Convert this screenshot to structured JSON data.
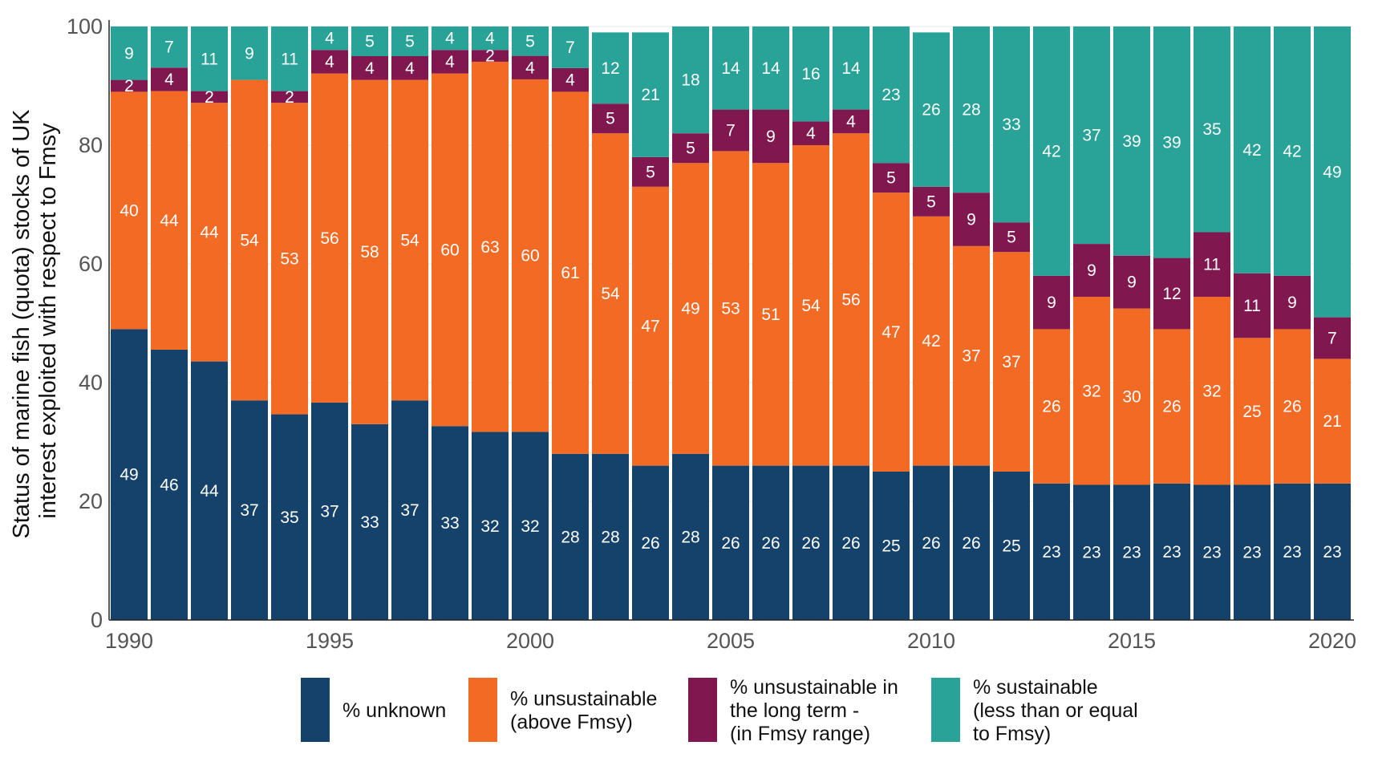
{
  "chart_data": {
    "type": "bar",
    "stacked": true,
    "xlabel": "",
    "ylabel": [
      "Status of marine fish (quota) stocks of UK",
      "interest exploited with respect to Fmsy"
    ],
    "ylim": [
      0,
      100
    ],
    "yticks": [
      0,
      20,
      40,
      60,
      80,
      100
    ],
    "xticks": [
      1990,
      1995,
      2000,
      2005,
      2010,
      2015,
      2020
    ],
    "grid": true,
    "legend_position": "bottom",
    "categories": [
      1990,
      1991,
      1992,
      1993,
      1994,
      1995,
      1996,
      1997,
      1998,
      1999,
      2000,
      2001,
      2002,
      2003,
      2004,
      2005,
      2006,
      2007,
      2008,
      2009,
      2010,
      2011,
      2012,
      2013,
      2014,
      2015,
      2016,
      2017,
      2018,
      2019,
      2020
    ],
    "series": [
      {
        "name": "% unknown",
        "legend_lines": [
          "% unknown"
        ],
        "color": "#14426B",
        "values": [
          49,
          46,
          44,
          37,
          35,
          37,
          33,
          37,
          33,
          32,
          32,
          28,
          28,
          26,
          28,
          26,
          26,
          26,
          26,
          25,
          26,
          26,
          25,
          23,
          23,
          23,
          23,
          23,
          23,
          23,
          23
        ]
      },
      {
        "name": "% unsustainable (above Fmsy)",
        "legend_lines": [
          "% unsustainable",
          "(above Fmsy)"
        ],
        "color": "#F26A24",
        "values": [
          40,
          44,
          44,
          54,
          53,
          56,
          58,
          54,
          60,
          63,
          60,
          61,
          54,
          47,
          49,
          53,
          51,
          54,
          56,
          47,
          42,
          37,
          37,
          26,
          32,
          30,
          26,
          32,
          25,
          26,
          21
        ]
      },
      {
        "name": "% unsustainable in the long term - (in Fmsy range)",
        "legend_lines": [
          "% unsustainable in",
          "the long term -",
          "(in Fmsy range)"
        ],
        "color": "#80174F",
        "values": [
          2,
          4,
          2,
          0,
          2,
          4,
          4,
          4,
          4,
          2,
          4,
          4,
          5,
          5,
          5,
          7,
          9,
          4,
          4,
          5,
          5,
          9,
          5,
          9,
          9,
          9,
          12,
          11,
          11,
          9,
          7
        ]
      },
      {
        "name": "% sustainable (less than or equal to Fmsy)",
        "legend_lines": [
          "% sustainable",
          "(less than or equal",
          "to Fmsy)"
        ],
        "color": "#29A298",
        "values": [
          9,
          7,
          11,
          9,
          11,
          4,
          5,
          5,
          4,
          4,
          5,
          7,
          12,
          21,
          18,
          14,
          14,
          16,
          14,
          23,
          26,
          28,
          33,
          42,
          37,
          39,
          39,
          35,
          42,
          42,
          49
        ]
      }
    ]
  }
}
